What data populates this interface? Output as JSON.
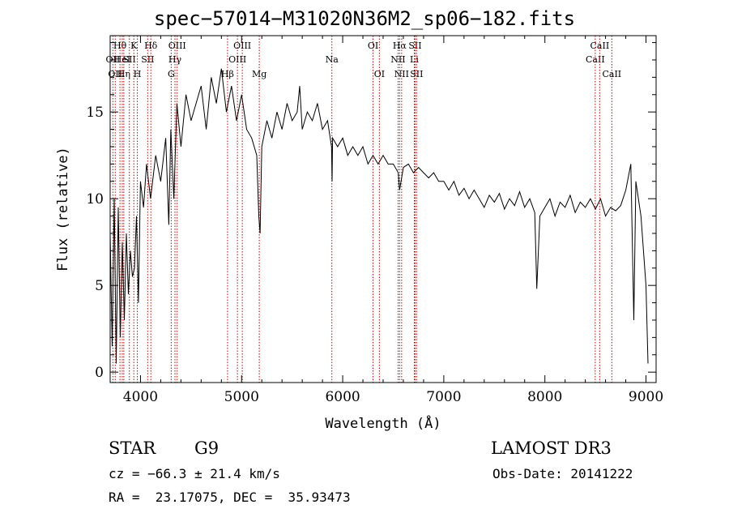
{
  "chart_data": {
    "type": "line",
    "title": "spec−57014−M31020N36M2_sp06−182.fits",
    "xlabel": "Wavelength (Å)",
    "ylabel": "Flux (relative)",
    "xlim": [
      3700,
      9100
    ],
    "ylim": [
      -0.6,
      19.4
    ],
    "x_ticks": [
      4000,
      5000,
      6000,
      7000,
      8000,
      9000
    ],
    "y_ticks": [
      0,
      5,
      10,
      15
    ],
    "grid": false,
    "series": [
      {
        "values_x": [
          3700,
          3720,
          3740,
          3760,
          3780,
          3800,
          3820,
          3840,
          3860,
          3880,
          3900,
          3920,
          3940,
          3960,
          3980,
          4000,
          4030,
          4060,
          4100,
          4150,
          4200,
          4250,
          4280,
          4300,
          4330,
          4360,
          4400,
          4450,
          4500,
          4550,
          4600,
          4650,
          4700,
          4750,
          4800,
          4850,
          4900,
          4950,
          5000,
          5050,
          5100,
          5150,
          5170,
          5183,
          5200,
          5250,
          5300,
          5350,
          5400,
          5450,
          5500,
          5550,
          5575,
          5600,
          5650,
          5700,
          5750,
          5800,
          5850,
          5890,
          5895,
          5900,
          5950,
          6000,
          6050,
          6100,
          6150,
          6200,
          6250,
          6300,
          6350,
          6400,
          6450,
          6500,
          6550,
          6563,
          6600,
          6650,
          6700,
          6750,
          6800,
          6850,
          6900,
          6950,
          7000,
          7050,
          7100,
          7150,
          7200,
          7250,
          7300,
          7350,
          7400,
          7450,
          7500,
          7550,
          7600,
          7650,
          7700,
          7750,
          7800,
          7850,
          7900,
          7920,
          7950,
          8000,
          8050,
          8100,
          8150,
          8200,
          8250,
          8300,
          8350,
          8400,
          8450,
          8500,
          8550,
          8600,
          8650,
          8700,
          8750,
          8800,
          8850,
          8880,
          8900,
          8950,
          9000,
          9020
        ],
        "values_y": [
          8.0,
          1.5,
          10.0,
          0.5,
          9.5,
          2.0,
          7.5,
          3.0,
          8.0,
          4.5,
          7.0,
          5.5,
          6.0,
          9.0,
          4.0,
          11.0,
          9.5,
          12.0,
          10.0,
          12.5,
          11.0,
          13.5,
          8.5,
          14.0,
          10.0,
          15.5,
          13.0,
          16.0,
          14.5,
          15.5,
          16.5,
          14.0,
          17.0,
          15.5,
          17.5,
          15.0,
          16.5,
          14.5,
          16.0,
          14.0,
          13.5,
          12.5,
          9.0,
          8.0,
          13.0,
          14.5,
          13.5,
          15.0,
          14.0,
          15.5,
          14.5,
          15.0,
          16.5,
          14.0,
          15.0,
          14.5,
          15.5,
          14.0,
          14.5,
          13.0,
          11.0,
          13.5,
          13.0,
          13.5,
          12.5,
          13.0,
          12.5,
          13.0,
          12.0,
          12.5,
          12.0,
          12.5,
          12.0,
          12.0,
          11.5,
          10.5,
          11.8,
          12.0,
          11.5,
          11.8,
          11.5,
          11.2,
          11.5,
          11.0,
          11.0,
          10.5,
          11.0,
          10.2,
          10.6,
          10.0,
          10.5,
          10.0,
          9.5,
          10.2,
          9.8,
          10.3,
          9.4,
          10.0,
          9.6,
          10.4,
          9.5,
          10.0,
          9.2,
          4.8,
          9.0,
          9.5,
          10.0,
          9.0,
          9.8,
          9.5,
          10.2,
          9.2,
          9.8,
          9.5,
          10.0,
          9.4,
          10.0,
          9.0,
          9.5,
          9.3,
          9.6,
          10.5,
          12.0,
          3.0,
          11.0,
          9.0,
          5.0,
          0.5
        ]
      }
    ],
    "lines": [
      {
        "wavelength": 3727,
        "label": "OII",
        "row": 1
      },
      {
        "wavelength": 3750,
        "label": "OII",
        "row": 2
      },
      {
        "wavelength": 3797,
        "label": "Hθ",
        "row": 0
      },
      {
        "wavelength": 3820,
        "label": "HeI",
        "row": 1
      },
      {
        "wavelength": 3835,
        "label": "Hη",
        "row": 2
      },
      {
        "wavelength": 3890,
        "label": "SII",
        "row": 1
      },
      {
        "wavelength": 3934,
        "label": "K",
        "row": 0
      },
      {
        "wavelength": 3969,
        "label": "H",
        "row": 2
      },
      {
        "wavelength": 4071,
        "label": "SII",
        "row": 1
      },
      {
        "wavelength": 4102,
        "label": "Hδ",
        "row": 0
      },
      {
        "wavelength": 4304,
        "label": "G",
        "row": 2
      },
      {
        "wavelength": 4341,
        "label": "Hγ",
        "row": 1
      },
      {
        "wavelength": 4363,
        "label": "OIII",
        "row": 0
      },
      {
        "wavelength": 4861,
        "label": "Hβ",
        "row": 2
      },
      {
        "wavelength": 4959,
        "label": "OIII",
        "row": 1
      },
      {
        "wavelength": 5007,
        "label": "OIII",
        "row": 0
      },
      {
        "wavelength": 5175,
        "label": "Mg",
        "row": 2
      },
      {
        "wavelength": 5893,
        "label": "Na",
        "row": 1
      },
      {
        "wavelength": 6300,
        "label": "OI",
        "row": 0
      },
      {
        "wavelength": 6363,
        "label": "OI",
        "row": 2
      },
      {
        "wavelength": 6548,
        "label": "NII",
        "row": 1
      },
      {
        "wavelength": 6563,
        "label": "Hα",
        "row": 0
      },
      {
        "wavelength": 6583,
        "label": "NII",
        "row": 2
      },
      {
        "wavelength": 6708,
        "label": "Li",
        "row": 1
      },
      {
        "wavelength": 6716,
        "label": "SII",
        "row": 0
      },
      {
        "wavelength": 6731,
        "label": "SII",
        "row": 2
      },
      {
        "wavelength": 8498,
        "label": "CaII",
        "row": 1
      },
      {
        "wavelength": 8542,
        "label": "CaII",
        "row": 0
      },
      {
        "wavelength": 8662,
        "label": "CaII",
        "row": 2
      }
    ]
  },
  "info": {
    "object_class": "STAR",
    "subclass": "G9",
    "survey": "LAMOST DR3",
    "cz": "cz = −66.3 ± 21.4 km/s",
    "obs_date": "Obs-Date: 20141222",
    "radec": "RA =  23.17075, DEC =  35.93473"
  }
}
